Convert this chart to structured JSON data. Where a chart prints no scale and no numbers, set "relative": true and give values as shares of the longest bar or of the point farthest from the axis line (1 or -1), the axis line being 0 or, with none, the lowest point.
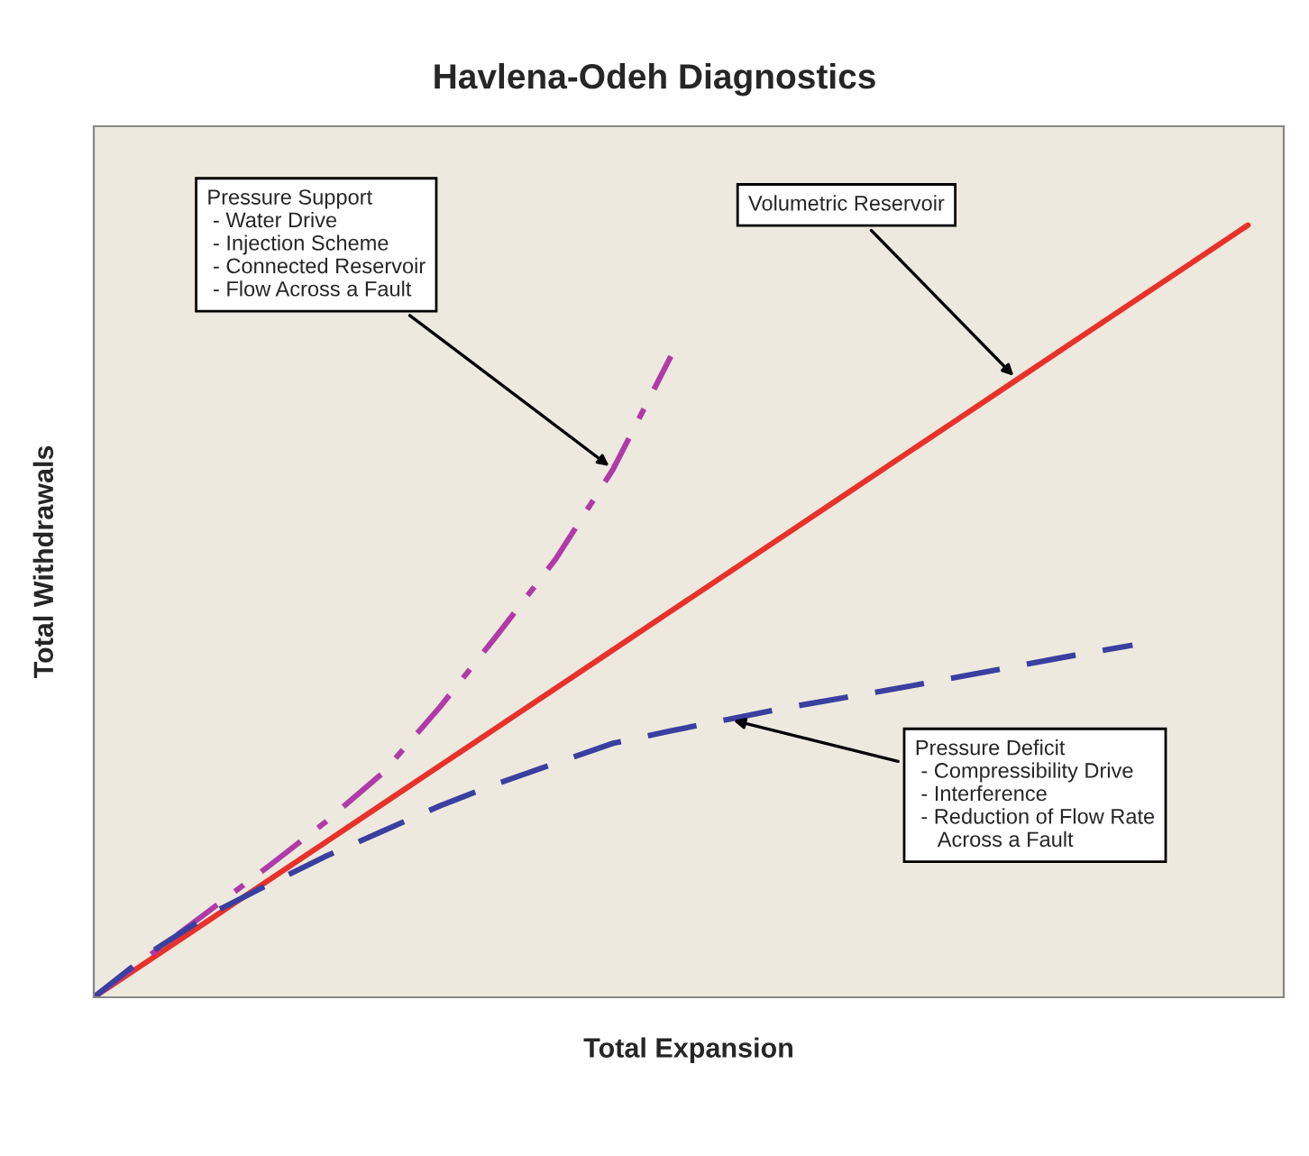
{
  "chart_data": {
    "type": "line",
    "title": "Havlena-Odeh Diagnostics",
    "xlabel": "Total Expansion",
    "ylabel": "Total Withdrawals",
    "relative": true,
    "tick_labels": false,
    "legend": false,
    "marker": "none",
    "categories": [
      null,
      null,
      null,
      null,
      null,
      null,
      null,
      null,
      null,
      null,
      null,
      null,
      null,
      null,
      null,
      null,
      null,
      null,
      null,
      null,
      null
    ],
    "series": [
      {
        "color": "#e8312a",
        "line_style": "solid",
        "values": [
          0,
          0.05,
          0.1,
          0.15,
          0.2,
          0.25,
          0.3,
          0.35,
          0.4,
          0.45,
          0.5,
          0.55,
          0.6,
          0.65,
          0.7,
          0.75,
          0.8,
          0.85,
          0.9,
          0.95,
          1.0
        ]
      },
      {
        "color": "#b03aa8",
        "line_style": "dashdot",
        "values": [
          0,
          0.056,
          0.112,
          0.168,
          0.226,
          0.29,
          0.376,
          0.47,
          0.567,
          0.684,
          0.83,
          null,
          null,
          null,
          null,
          null,
          null,
          null,
          null,
          null,
          null
        ]
      },
      {
        "color": "#3a3fa0",
        "line_style": "dashed",
        "values": [
          0,
          0.059,
          0.107,
          0.145,
          0.182,
          0.215,
          0.248,
          0.277,
          0.303,
          0.329,
          0.345,
          0.36,
          0.375,
          0.388,
          0.401,
          0.415,
          0.429,
          0.443,
          0.456,
          null,
          null
        ]
      }
    ],
    "annotations": [
      "Pressure Support\n - Water Drive\n - Injection Scheme\n - Connected Reservoir\n - Flow Across a Fault",
      "Volumetric Reservoir",
      "Pressure Deficit\n - Compressibility Drive\n - Interference\n - Reduction of Flow Rate\n    Across a Fault"
    ]
  }
}
